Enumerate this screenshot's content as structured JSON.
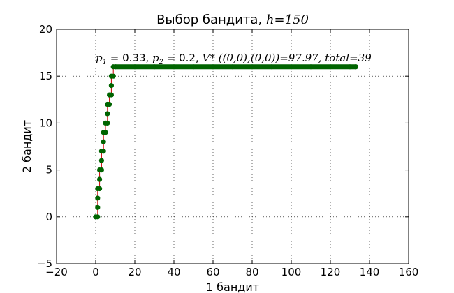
{
  "chart_data": {
    "type": "scatter",
    "title_prefix": "Выбор бандита, ",
    "title_var": "h",
    "title_value": "=150",
    "xlabel": "1 бандит",
    "ylabel": "2 бандит",
    "xlim": [
      -20,
      160
    ],
    "ylim": [
      -5,
      20
    ],
    "xticks": [
      -20,
      0,
      20,
      40,
      60,
      80,
      100,
      120,
      140,
      160
    ],
    "yticks": [
      -5,
      0,
      5,
      10,
      15,
      20
    ],
    "grid": true,
    "annotation": {
      "p1_label": "p",
      "p1_sub": "1",
      "p1_value": " = 0.33, ",
      "p2_label": "p",
      "p2_sub": "2",
      "p2_value": " = 0.2, ",
      "v_expr": "V* ((0,0),(0,0))=97.97,",
      "total_label": "total",
      "total_value": "=39"
    },
    "line_color": "#cc0000",
    "marker_color": "#006400",
    "points": [
      [
        0,
        0
      ],
      [
        1,
        0
      ],
      [
        1,
        1
      ],
      [
        1,
        2
      ],
      [
        1,
        3
      ],
      [
        2,
        3
      ],
      [
        2,
        4
      ],
      [
        2,
        5
      ],
      [
        3,
        5
      ],
      [
        3,
        6
      ],
      [
        3,
        7
      ],
      [
        4,
        7
      ],
      [
        4,
        8
      ],
      [
        4,
        9
      ],
      [
        5,
        9
      ],
      [
        5,
        10
      ],
      [
        6,
        10
      ],
      [
        6,
        11
      ],
      [
        6,
        12
      ],
      [
        7,
        12
      ],
      [
        7,
        13
      ],
      [
        8,
        13
      ],
      [
        8,
        14
      ],
      [
        8,
        15
      ],
      [
        9,
        15
      ],
      [
        9,
        16
      ],
      [
        10,
        16
      ],
      [
        20,
        16
      ],
      [
        30,
        16
      ],
      [
        40,
        16
      ],
      [
        50,
        16
      ],
      [
        60,
        16
      ],
      [
        70,
        16
      ],
      [
        80,
        16
      ],
      [
        90,
        16
      ],
      [
        100,
        16
      ],
      [
        110,
        16
      ],
      [
        120,
        16
      ],
      [
        130,
        16
      ],
      [
        133,
        16
      ]
    ]
  }
}
